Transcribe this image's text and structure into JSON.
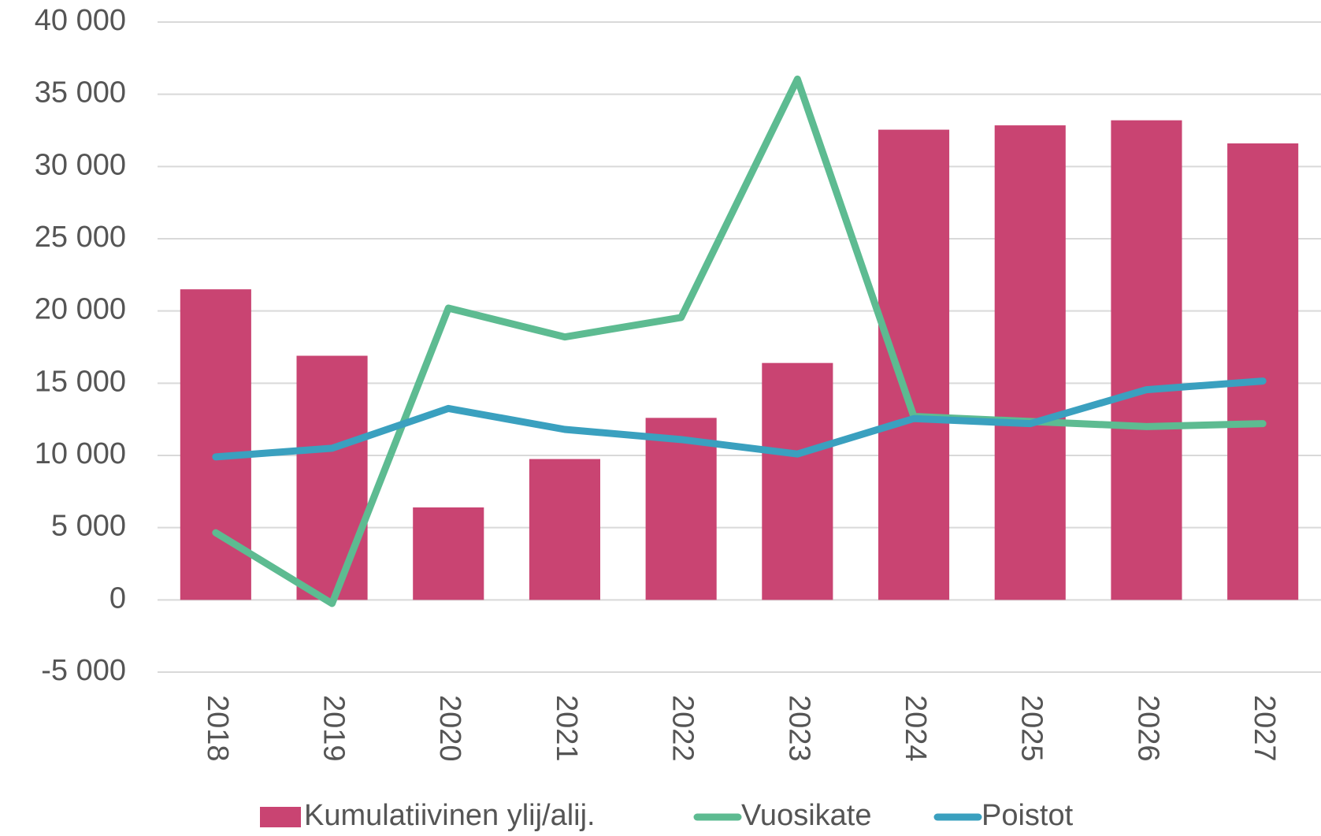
{
  "chart_data": {
    "type": "bar_line",
    "categories": [
      "2018",
      "2019",
      "2020",
      "2021",
      "2022",
      "2023",
      "2024",
      "2025",
      "2026",
      "2027"
    ],
    "series": [
      {
        "name": "Kumulatiivinen ylij/alij.",
        "type": "bar",
        "color": "#c94472",
        "values": [
          21500,
          16900,
          6400,
          9750,
          12600,
          16400,
          32550,
          32850,
          33200,
          31600
        ]
      },
      {
        "name": "Vuosikate",
        "type": "line",
        "color": "#5dbb91",
        "values": [
          4650,
          -250,
          20200,
          18200,
          19550,
          36050,
          12700,
          12350,
          12000,
          12200
        ]
      },
      {
        "name": "Poistot",
        "type": "line",
        "color": "#3aa0bf",
        "values": [
          9900,
          10500,
          13250,
          11800,
          11100,
          10100,
          12550,
          12200,
          14550,
          15150
        ]
      }
    ],
    "ylim": [
      -5000,
      40000
    ],
    "yticks": [
      {
        "value": -5000,
        "label": "-5 000"
      },
      {
        "value": 0,
        "label": "0"
      },
      {
        "value": 5000,
        "label": "5 000"
      },
      {
        "value": 10000,
        "label": "10 000"
      },
      {
        "value": 15000,
        "label": "15 000"
      },
      {
        "value": 20000,
        "label": "20 000"
      },
      {
        "value": 25000,
        "label": "25 000"
      },
      {
        "value": 30000,
        "label": "30 000"
      },
      {
        "value": 35000,
        "label": "35 000"
      },
      {
        "value": 40000,
        "label": "40 000"
      }
    ],
    "grid": true,
    "legend": "bottom"
  }
}
